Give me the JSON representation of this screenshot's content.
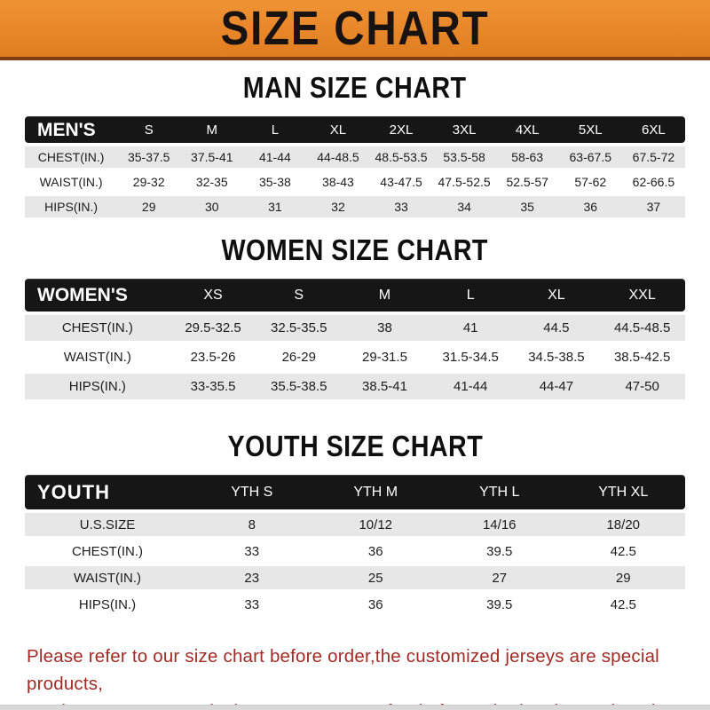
{
  "banner": {
    "title": "SIZE CHART",
    "bg_color": "#E8862A",
    "text_color": "#181310",
    "edge_color": "#7E3F10"
  },
  "sections": [
    {
      "title": "MAN SIZE CHART",
      "header_label": "MEN'S",
      "columns": [
        "S",
        "M",
        "L",
        "XL",
        "2XL",
        "3XL",
        "4XL",
        "5XL",
        "6XL"
      ],
      "rows": [
        {
          "label": "CHEST(IN.)",
          "values": [
            "35-37.5",
            "37.5-41",
            "41-44",
            "44-48.5",
            "48.5-53.5",
            "53.5-58",
            "58-63",
            "63-67.5",
            "67.5-72"
          ]
        },
        {
          "label": "WAIST(IN.)",
          "values": [
            "29-32",
            "32-35",
            "35-38",
            "38-43",
            "43-47.5",
            "47.5-52.5",
            "52.5-57",
            "57-62",
            "62-66.5"
          ]
        },
        {
          "label": "HIPS(IN.)",
          "values": [
            "29",
            "30",
            "31",
            "32",
            "33",
            "34",
            "35",
            "36",
            "37"
          ]
        }
      ]
    },
    {
      "title": "WOMEN SIZE CHART",
      "header_label": "WOMEN'S",
      "columns": [
        "XS",
        "S",
        "M",
        "L",
        "XL",
        "XXL"
      ],
      "rows": [
        {
          "label": "CHEST(IN.)",
          "values": [
            "29.5-32.5",
            "32.5-35.5",
            "38",
            "41",
            "44.5",
            "44.5-48.5"
          ]
        },
        {
          "label": "WAIST(IN.)",
          "values": [
            "23.5-26",
            "26-29",
            "29-31.5",
            "31.5-34.5",
            "34.5-38.5",
            "38.5-42.5"
          ]
        },
        {
          "label": "HIPS(IN.)",
          "values": [
            "33-35.5",
            "35.5-38.5",
            "38.5-41",
            "41-44",
            "44-47",
            "47-50"
          ]
        }
      ]
    },
    {
      "title": "YOUTH SIZE CHART",
      "header_label": "YOUTH",
      "columns": [
        "YTH S",
        "YTH M",
        "YTH L",
        "YTH XL"
      ],
      "rows": [
        {
          "label": "U.S.SIZE",
          "values": [
            "8",
            "10/12",
            "14/16",
            "18/20"
          ]
        },
        {
          "label": "CHEST(IN.)",
          "values": [
            "33",
            "36",
            "39.5",
            "42.5"
          ]
        },
        {
          "label": "WAIST(IN.)",
          "values": [
            "23",
            "25",
            "27",
            "29"
          ]
        },
        {
          "label": "HIPS(IN.)",
          "values": [
            "33",
            "36",
            "39.5",
            "42.5"
          ]
        }
      ]
    }
  ],
  "table_layout": {
    "label_col_percent": [
      14,
      22,
      25
    ],
    "row_shading": [
      "gray",
      "white",
      "gray",
      "white"
    ]
  },
  "footer": {
    "line1": "Please refer to our size chart before order,the customized jerseys are special products,",
    "line2": "we don't accept cancel, change, teturn or refund after order has been placed!",
    "text_color": "#A22C25"
  }
}
